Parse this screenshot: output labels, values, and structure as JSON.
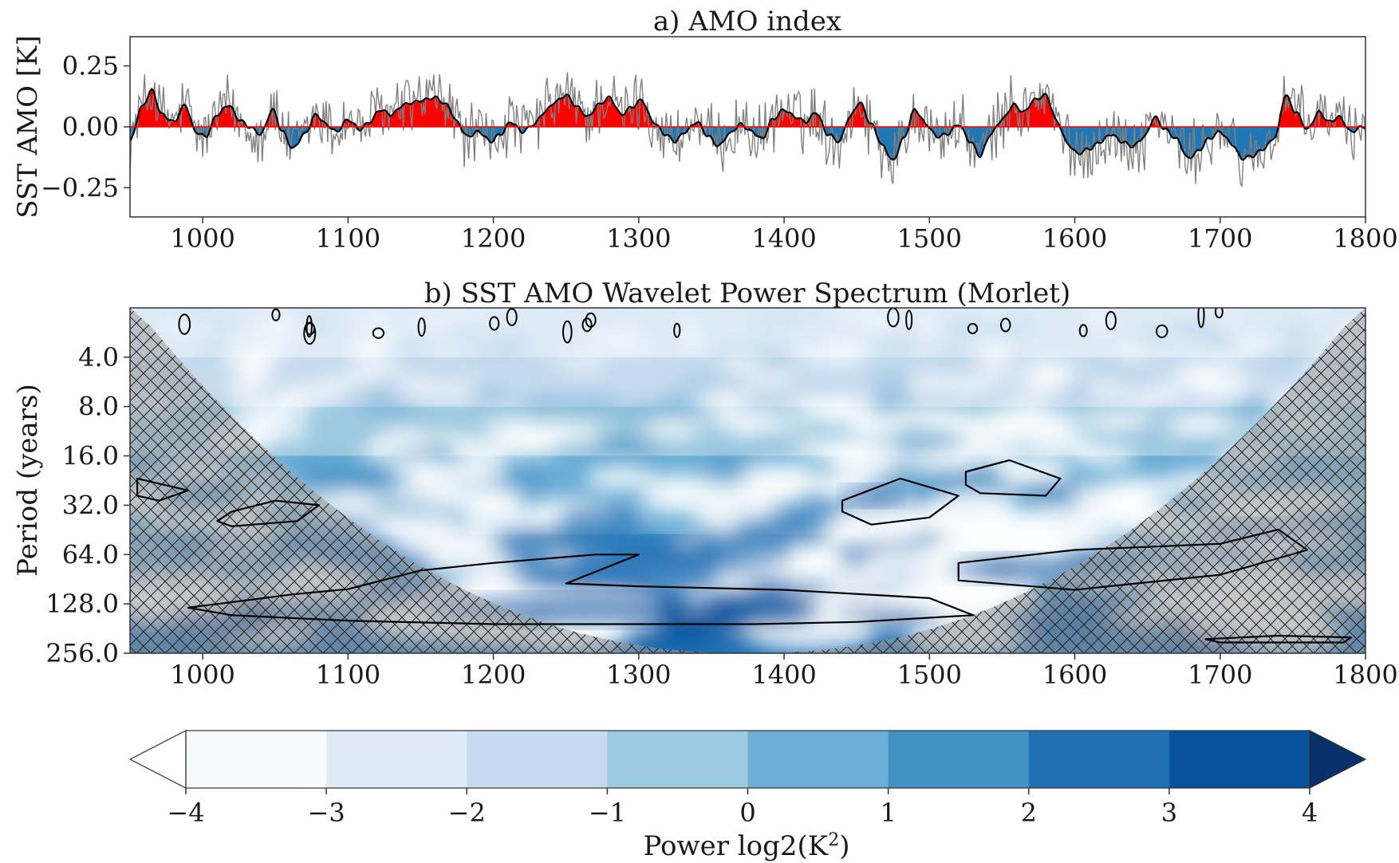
{
  "chart_data": [
    {
      "type": "line",
      "title": "a) AMO index",
      "ylabel": "SST AMO [K]",
      "xlabel": "",
      "xlim": [
        950,
        1800
      ],
      "ylim": [
        -0.37,
        0.37
      ],
      "x_ticks": [
        1000,
        1100,
        1200,
        1300,
        1400,
        1500,
        1600,
        1700,
        1800
      ],
      "y_ticks": [
        0.25,
        0.0,
        -0.25
      ],
      "y_tick_labels": [
        "0.25",
        "0.00",
        "−0.25"
      ],
      "grid": false,
      "series_smoothed_knots": {
        "x": [
          950,
          958,
          965,
          972,
          980,
          988,
          995,
          1002,
          1010,
          1018,
          1025,
          1032,
          1040,
          1048,
          1055,
          1062,
          1070,
          1078,
          1085,
          1092,
          1100,
          1108,
          1115,
          1122,
          1130,
          1138,
          1145,
          1152,
          1160,
          1168,
          1175,
          1182,
          1190,
          1198,
          1205,
          1212,
          1220,
          1228,
          1235,
          1242,
          1250,
          1258,
          1265,
          1272,
          1280,
          1288,
          1295,
          1302,
          1310,
          1318,
          1325,
          1332,
          1340,
          1348,
          1355,
          1362,
          1370,
          1378,
          1385,
          1392,
          1400,
          1408,
          1415,
          1422,
          1430,
          1438,
          1445,
          1452,
          1460,
          1468,
          1475,
          1482,
          1490,
          1498,
          1505,
          1512,
          1520,
          1528,
          1535,
          1542,
          1550,
          1558,
          1565,
          1572,
          1580,
          1588,
          1595,
          1602,
          1610,
          1618,
          1625,
          1632,
          1640,
          1648,
          1655,
          1662,
          1670,
          1678,
          1685,
          1692,
          1700,
          1708,
          1715,
          1722,
          1730,
          1738,
          1745,
          1752,
          1760,
          1768,
          1775,
          1782,
          1790,
          1798,
          1800
        ],
        "y": [
          -0.06,
          0.08,
          0.15,
          0.05,
          0.02,
          0.09,
          -0.02,
          -0.04,
          0.05,
          0.09,
          0.03,
          0.0,
          -0.03,
          0.07,
          -0.02,
          -0.09,
          -0.03,
          0.05,
          0.01,
          -0.02,
          0.03,
          -0.01,
          0.02,
          0.07,
          0.05,
          0.09,
          0.1,
          0.11,
          0.12,
          0.09,
          0.02,
          -0.04,
          -0.02,
          -0.06,
          -0.03,
          0.02,
          -0.02,
          0.01,
          0.06,
          0.1,
          0.13,
          0.08,
          0.04,
          0.09,
          0.12,
          0.05,
          0.08,
          0.11,
          0.02,
          -0.03,
          -0.06,
          -0.02,
          0.02,
          -0.04,
          -0.08,
          -0.03,
          0.01,
          -0.02,
          -0.05,
          0.03,
          0.07,
          0.04,
          0.02,
          0.06,
          -0.03,
          -0.06,
          0.04,
          0.1,
          0.01,
          -0.08,
          -0.14,
          -0.05,
          0.07,
          0.01,
          -0.04,
          -0.03,
          0.01,
          -0.06,
          -0.12,
          -0.03,
          0.03,
          0.09,
          0.06,
          0.11,
          0.13,
          0.02,
          -0.07,
          -0.11,
          -0.09,
          -0.06,
          -0.03,
          -0.06,
          -0.08,
          -0.04,
          0.04,
          -0.01,
          -0.05,
          -0.13,
          -0.1,
          -0.05,
          -0.02,
          -0.07,
          -0.13,
          -0.12,
          -0.09,
          -0.04,
          0.13,
          0.06,
          -0.01,
          0.06,
          0.02,
          0.04,
          -0.02,
          0.0,
          0.0
        ]
      },
      "colors": {
        "positive": "#ff0000",
        "negative": "#1f77b4",
        "raw": "#808080",
        "smoothed": "#000000"
      }
    },
    {
      "type": "heatmap",
      "title": "b) SST AMO Wavelet Power Spectrum (Morlet)",
      "ylabel": "Period (years)",
      "xlabel": "",
      "xlim": [
        950,
        1800
      ],
      "ylim": [
        2,
        256
      ],
      "y_scale": "log2",
      "x_ticks": [
        1000,
        1100,
        1200,
        1300,
        1400,
        1500,
        1600,
        1700,
        1800
      ],
      "y_ticks": [
        4.0,
        8.0,
        16.0,
        32.0,
        64.0,
        128.0,
        256.0
      ],
      "y_tick_labels": [
        "4.0",
        "8.0",
        "16.0",
        "32.0",
        "64.0",
        "128.0",
        "256.0"
      ],
      "significance_contours": [
        {
          "x": [
            1062,
            1100,
            1150,
            1200,
            1270,
            1300,
            1250,
            1300,
            1400,
            1500,
            1530,
            1450,
            1380,
            1300,
            1200,
            1100,
            1020,
            990,
            1062
          ],
          "y": [
            112,
            104,
            80,
            72,
            64,
            64,
            96,
            100,
            105,
            118,
            150,
            165,
            170,
            170,
            170,
            162,
            150,
            135,
            112
          ]
        },
        {
          "x": [
            1020,
            1050,
            1080,
            1065,
            1020,
            1010,
            1020
          ],
          "y": [
            35,
            30,
            32,
            40,
            43,
            40,
            35
          ]
        },
        {
          "x": [
            1440,
            1480,
            1520,
            1500,
            1460,
            1440,
            1440
          ],
          "y": [
            30,
            22,
            28,
            38,
            42,
            35,
            30
          ]
        },
        {
          "x": [
            1525,
            1555,
            1590,
            1580,
            1535,
            1525,
            1525
          ],
          "y": [
            20,
            17,
            22,
            28,
            27,
            24,
            20
          ]
        },
        {
          "x": [
            955,
            990,
            970,
            955,
            955
          ],
          "y": [
            22,
            26,
            30,
            28,
            22
          ]
        },
        {
          "x": [
            1520,
            1600,
            1700,
            1740,
            1760,
            1700,
            1600,
            1520,
            1520
          ],
          "y": [
            72,
            60,
            55,
            45,
            60,
            85,
            105,
            92,
            72
          ]
        },
        {
          "x": [
            1690,
            1740,
            1790,
            1785,
            1700,
            1690
          ],
          "y": [
            210,
            200,
            205,
            220,
            220,
            210
          ]
        }
      ],
      "cone_of_influence": true
    }
  ],
  "colorbar": {
    "label": "Power log2(K²)",
    "ticks": [
      -4,
      -3,
      -2,
      -1,
      0,
      1,
      2,
      3,
      4
    ],
    "tick_labels": [
      "−4",
      "−3",
      "−2",
      "−1",
      "0",
      "1",
      "2",
      "3",
      "4"
    ],
    "colors": [
      "#f7fbff",
      "#deebf7",
      "#c6dbef",
      "#9ecae1",
      "#6baed6",
      "#4292c6",
      "#2171b5",
      "#08519c"
    ],
    "extend": "both"
  }
}
